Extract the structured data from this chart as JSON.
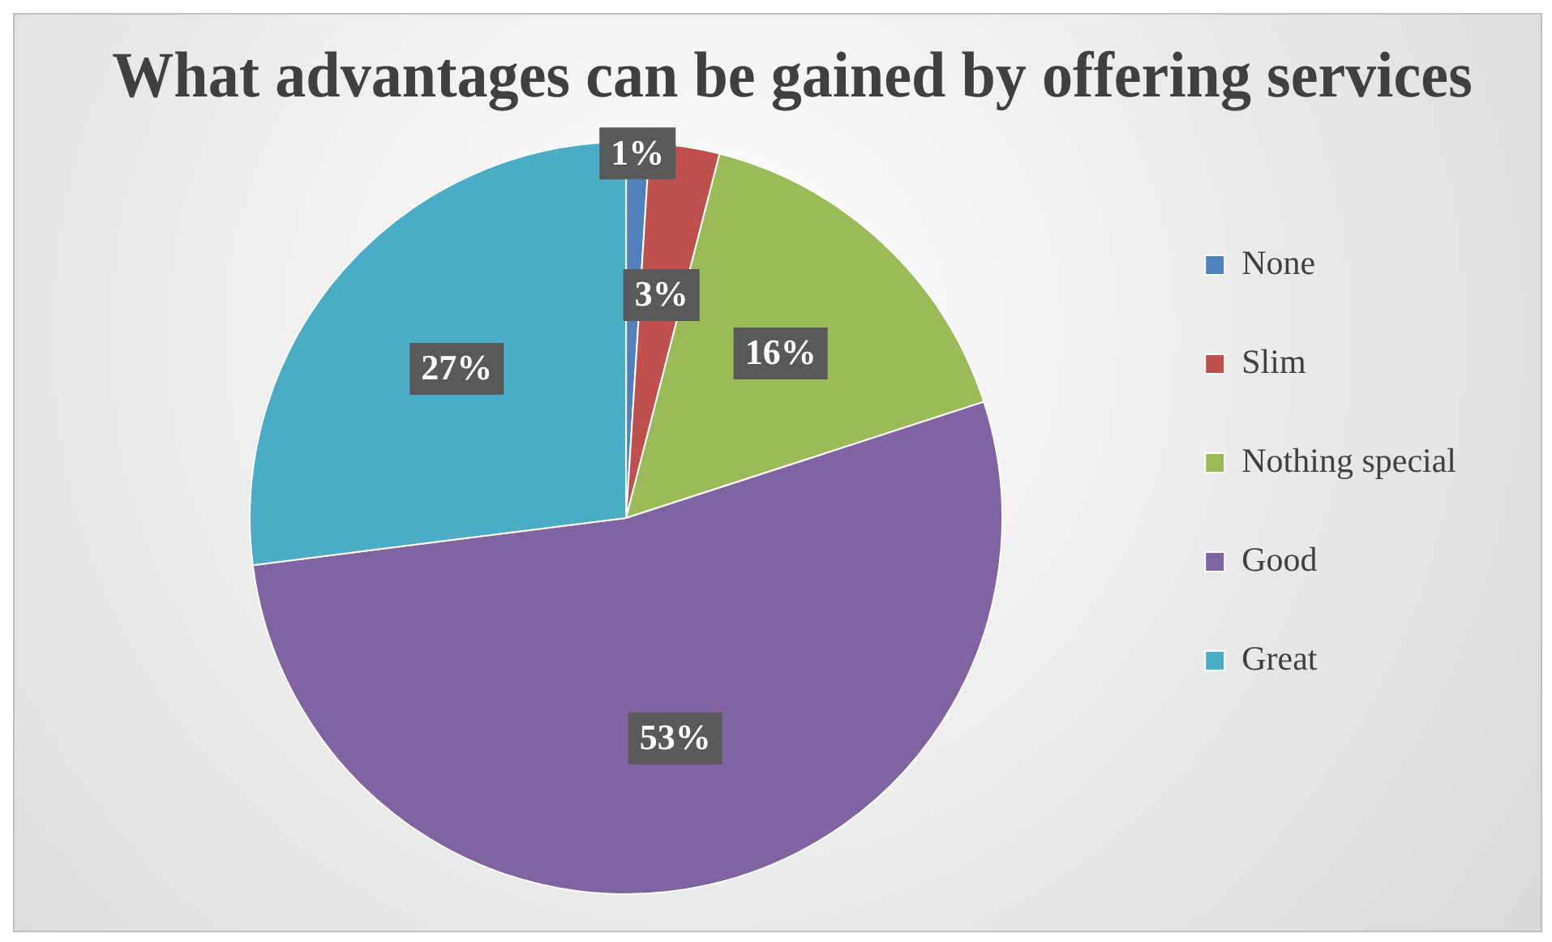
{
  "chart_data": {
    "type": "pie",
    "title": "What advantages can be gained by offering services",
    "categories": [
      "None",
      "Slim",
      "Nothing special",
      "Good",
      "Great"
    ],
    "values": [
      1,
      3,
      16,
      53,
      27
    ],
    "colors": [
      "#4f81bd",
      "#c0504d",
      "#9bbb59",
      "#8064a2",
      "#4bacc6"
    ],
    "value_labels": [
      "1%",
      "3%",
      "16%",
      "53%",
      "27%"
    ],
    "legend": "right"
  }
}
